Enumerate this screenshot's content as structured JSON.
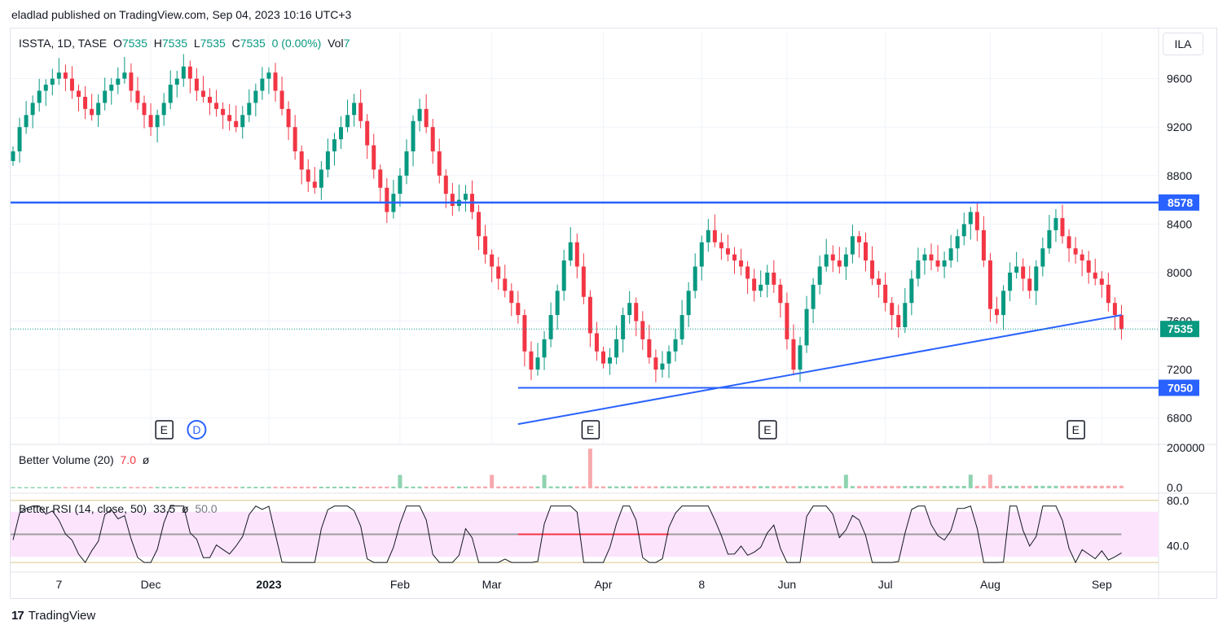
{
  "publisher_line": "eladlad published on TradingView.com, Sep 04, 2023 10:16 UTC+3",
  "currency_button": "ILA",
  "brand": "TradingView",
  "legend": {
    "symbol": "ISSTA, 1D, TASE",
    "o_label": "O",
    "o": "7535",
    "h_label": "H",
    "h": "7535",
    "l_label": "L",
    "l": "7535",
    "c_label": "C",
    "c": "7535",
    "change": "0 (0.00%)",
    "vol_label": "Vol",
    "vol": "7"
  },
  "volume_pane": {
    "title": "Better Volume (20)",
    "value": "7.0",
    "extra": "ø"
  },
  "rsi_pane": {
    "title": "Better RSI (14, close, 50)",
    "value": "33.5",
    "extra": "ø",
    "mid": "50.0"
  },
  "colors": {
    "up": "#089981",
    "down": "#f23645",
    "level": "#2962ff",
    "grid": "#f0f3fa"
  },
  "chart_data": {
    "type": "candlestick",
    "price_axis": {
      "ticks": [
        6800,
        7200,
        7600,
        8000,
        8400,
        8800,
        9200,
        9600
      ],
      "range": [
        6590,
        9980
      ]
    },
    "time_axis_labels": [
      {
        "label": "7",
        "index": 7,
        "bold": false
      },
      {
        "label": "Dec",
        "index": 21,
        "bold": false
      },
      {
        "label": "2023",
        "index": 39,
        "bold": true
      },
      {
        "label": "Feb",
        "index": 59,
        "bold": false
      },
      {
        "label": "Mar",
        "index": 73,
        "bold": false
      },
      {
        "label": "Apr",
        "index": 90,
        "bold": false
      },
      {
        "label": "8",
        "index": 105,
        "bold": false
      },
      {
        "label": "Jun",
        "index": 118,
        "bold": false
      },
      {
        "label": "Jul",
        "index": 133,
        "bold": false
      },
      {
        "label": "Aug",
        "index": 149,
        "bold": false
      },
      {
        "label": "Sep",
        "index": 166,
        "bold": false
      }
    ],
    "horizontal_levels": [
      {
        "price": 8578,
        "label": "8578",
        "from_index": 0
      },
      {
        "price": 7050,
        "label": "7050",
        "from_index": 77
      }
    ],
    "last_price": {
      "price": 7535,
      "label": "7535"
    },
    "trendline": {
      "from": {
        "index": 77,
        "price": 6750
      },
      "to": {
        "index": 169,
        "price": 7650
      }
    },
    "event_markers": [
      {
        "index": 23,
        "label": "E"
      },
      {
        "index": 28,
        "label": "D"
      },
      {
        "index": 88,
        "label": "E"
      },
      {
        "index": 115,
        "label": "E"
      },
      {
        "index": 162,
        "label": "E"
      }
    ],
    "closes": [
      9000,
      9200,
      9300,
      9400,
      9500,
      9550,
      9600,
      9650,
      9600,
      9500,
      9450,
      9350,
      9300,
      9400,
      9500,
      9550,
      9600,
      9650,
      9500,
      9400,
      9300,
      9200,
      9300,
      9400,
      9550,
      9600,
      9700,
      9600,
      9500,
      9450,
      9400,
      9350,
      9300,
      9250,
      9200,
      9300,
      9400,
      9500,
      9600,
      9650,
      9500,
      9350,
      9200,
      9000,
      8850,
      8750,
      8700,
      8850,
      9000,
      9100,
      9200,
      9300,
      9400,
      9250,
      9050,
      8850,
      8700,
      8500,
      8650,
      8800,
      9000,
      9250,
      9350,
      9200,
      9000,
      8800,
      8650,
      8550,
      8600,
      8650,
      8500,
      8300,
      8150,
      8050,
      7950,
      7850,
      7750,
      7650,
      7350,
      7200,
      7300,
      7450,
      7650,
      7850,
      8100,
      8250,
      8050,
      7800,
      7500,
      7350,
      7250,
      7300,
      7450,
      7650,
      7750,
      7600,
      7450,
      7300,
      7200,
      7250,
      7350,
      7450,
      7650,
      7850,
      8050,
      8250,
      8350,
      8250,
      8200,
      8150,
      8100,
      8050,
      7950,
      7850,
      7900,
      8000,
      7900,
      7750,
      7450,
      7200,
      7400,
      7700,
      7900,
      8050,
      8150,
      8100,
      8050,
      8150,
      8300,
      8250,
      8100,
      7950,
      7900,
      7750,
      7650,
      7550,
      7750,
      7950,
      8100,
      8150,
      8100,
      8050,
      8100,
      8200,
      8300,
      8400,
      8500,
      8350,
      8100,
      7700,
      7650,
      7850,
      8000,
      8050,
      7950,
      7850,
      8050,
      8200,
      8350,
      8450,
      8300,
      8200,
      8150,
      8100,
      8000,
      7950,
      7900,
      7750,
      7650,
      7535
    ],
    "volume": {
      "axis_ticks": [
        200000,
        0.0
      ],
      "tick_labels": [
        "200000",
        "0.0"
      ],
      "max": 200000
    },
    "rsi": {
      "axis_ticks": [
        80.0,
        40.0
      ],
      "tick_labels": [
        "80.0",
        "40.0"
      ],
      "mid": 50,
      "band": [
        30,
        70
      ],
      "current": 33.5
    }
  }
}
